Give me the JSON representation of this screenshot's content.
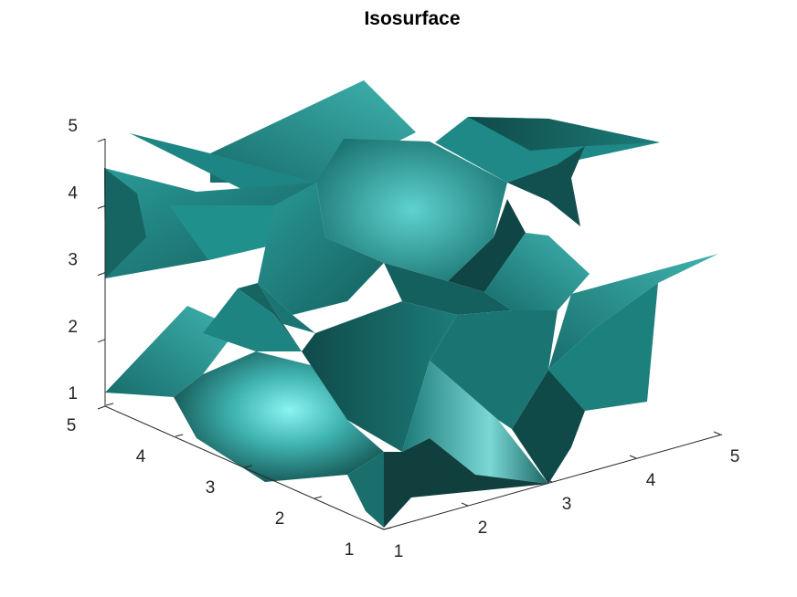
{
  "chart_data": {
    "type": "isosurface",
    "title": "Isosurface",
    "xlabel": "",
    "ylabel": "",
    "zlabel": "",
    "xlim": [
      1,
      5
    ],
    "ylim": [
      1,
      5
    ],
    "zlim": [
      1,
      5
    ],
    "x_ticks": [
      "1",
      "2",
      "3",
      "4",
      "5"
    ],
    "y_ticks": [
      "1",
      "2",
      "3",
      "4",
      "5"
    ],
    "z_ticks": [
      "1",
      "2",
      "3",
      "4",
      "5"
    ],
    "face_color": "#1f8a88",
    "highlight_color": "#8af4f2",
    "shadow_color": "#0d3f3e",
    "grid": false,
    "box": false
  }
}
